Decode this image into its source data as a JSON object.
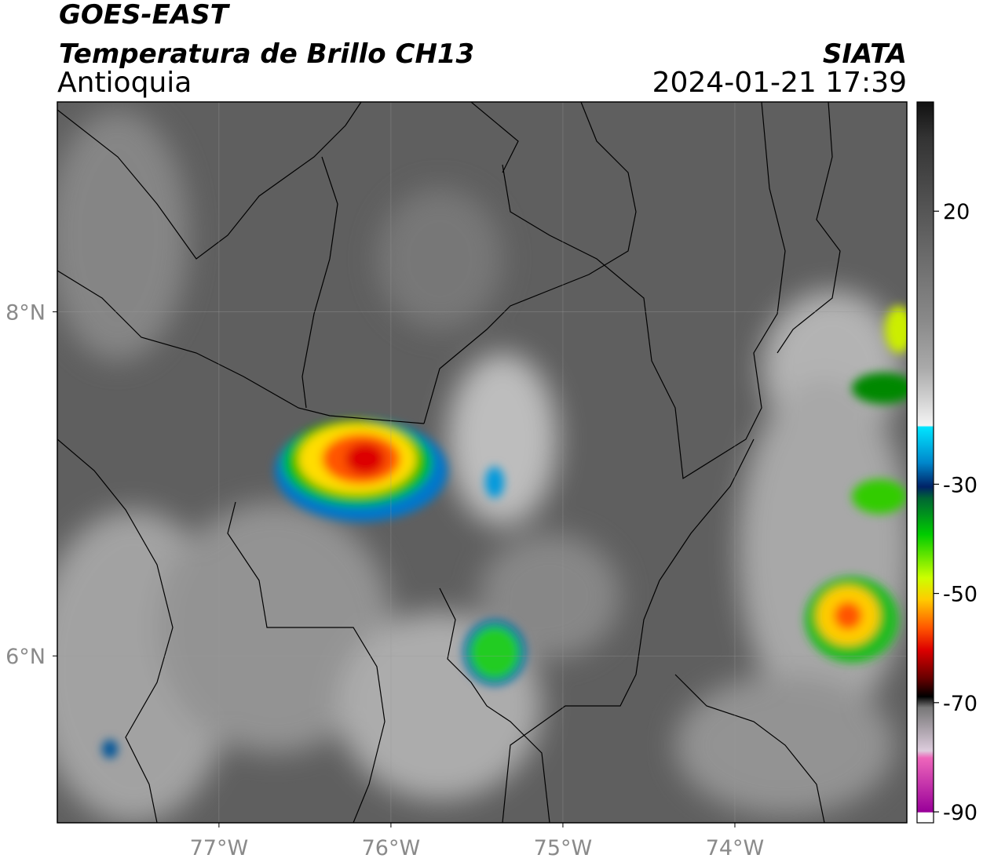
{
  "header": {
    "title": "GOES-EAST",
    "subtitle": "Temperatura de Brillo CH13",
    "region": "Antioquia",
    "source": "SIATA",
    "datetime": "2024-01-21 17:39"
  },
  "map": {
    "xlim": [
      -77.94,
      -73
    ],
    "ylim": [
      5.03,
      9.22
    ],
    "xticks": [
      {
        "value": -77,
        "label": "77°W"
      },
      {
        "value": -76,
        "label": "76°W"
      },
      {
        "value": -75,
        "label": "75°W"
      },
      {
        "value": -74,
        "label": "74°W"
      }
    ],
    "yticks": [
      {
        "value": 8,
        "label": "8°N"
      },
      {
        "value": 6,
        "label": "6°N"
      }
    ],
    "grid": true
  },
  "colorbar": {
    "lim": [
      -92,
      40
    ],
    "ticks": [
      20,
      -30,
      -50,
      -70,
      -90
    ]
  }
}
